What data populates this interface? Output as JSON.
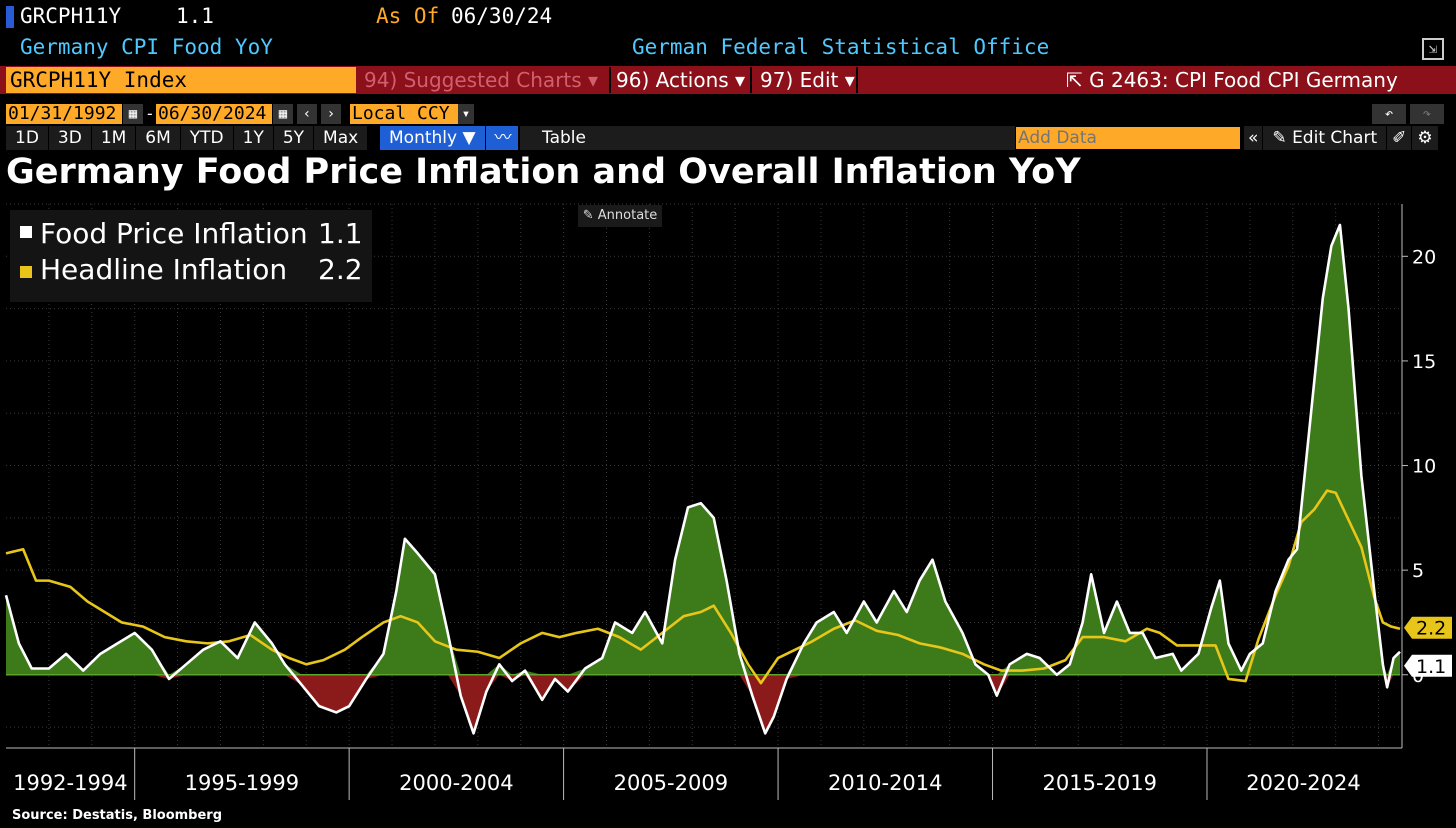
{
  "header": {
    "ticker": "GRCPH11Y",
    "last_value": "1.1",
    "as_of_label": "As Of",
    "as_of_date": "06/30/24",
    "security_name": "Germany CPI Food YoY",
    "source_org": "German Federal Statistical Office",
    "index_field": "GRCPH11Y Index",
    "menu_suggested": "94) Suggested Charts",
    "menu_actions": "96) Actions",
    "menu_edit": "97) Edit",
    "chart_id": "G 2463: CPI Food CPI Germany"
  },
  "toolbar": {
    "start_date": "01/31/1992",
    "end_date": "06/30/2024",
    "currency": "Local CCY",
    "periods": [
      "1D",
      "3D",
      "1M",
      "6M",
      "YTD",
      "1Y",
      "5Y",
      "Max"
    ],
    "frequency": "Monthly ▼",
    "table_label": "Table",
    "add_data_placeholder": "Add Data",
    "edit_chart_label": "Edit Chart",
    "annotate_label": "Annotate"
  },
  "colors": {
    "food_line": "#ffffff",
    "headline_line": "#e8c619",
    "positive_fill": "#3c7a1a",
    "negative_fill": "#8b1a1a",
    "accent_orange": "#ffa928",
    "header_red": "#8b1019"
  },
  "source": "Source: Destatis, Bloomberg",
  "chart_data": {
    "type": "line",
    "title": "Germany Food Price Inflation and Overall Inflation YoY",
    "x_unit": "year",
    "x_range": [
      1992.0,
      2024.5
    ],
    "ylim": [
      -3.5,
      22.5
    ],
    "y_ticks": [
      0,
      5,
      10,
      15,
      20
    ],
    "x_period_labels": [
      "1992-1994",
      "1995-1999",
      "2000-2004",
      "2005-2009",
      "2010-2014",
      "2015-2019",
      "2020-2024"
    ],
    "grid": true,
    "legend_position": "top-left",
    "area_fill_series": "Food Price Inflation",
    "series": [
      {
        "name": "Food Price Inflation",
        "last": "1.1",
        "color": "#ffffff",
        "points": [
          [
            1992.0,
            3.8
          ],
          [
            1992.3,
            1.5
          ],
          [
            1992.6,
            0.3
          ],
          [
            1993.0,
            0.3
          ],
          [
            1993.4,
            1.0
          ],
          [
            1993.8,
            0.2
          ],
          [
            1994.2,
            1.0
          ],
          [
            1994.6,
            1.5
          ],
          [
            1995.0,
            2.0
          ],
          [
            1995.4,
            1.2
          ],
          [
            1995.8,
            -0.2
          ],
          [
            1996.2,
            0.5
          ],
          [
            1996.6,
            1.2
          ],
          [
            1997.0,
            1.6
          ],
          [
            1997.4,
            0.8
          ],
          [
            1997.8,
            2.5
          ],
          [
            1998.2,
            1.5
          ],
          [
            1998.5,
            0.5
          ],
          [
            1998.9,
            -0.5
          ],
          [
            1999.3,
            -1.5
          ],
          [
            1999.7,
            -1.8
          ],
          [
            2000.0,
            -1.5
          ],
          [
            2000.4,
            -0.2
          ],
          [
            2000.8,
            1.0
          ],
          [
            2001.1,
            4.0
          ],
          [
            2001.3,
            6.5
          ],
          [
            2001.6,
            5.8
          ],
          [
            2002.0,
            4.8
          ],
          [
            2002.3,
            2.0
          ],
          [
            2002.6,
            -1.0
          ],
          [
            2002.9,
            -2.8
          ],
          [
            2003.2,
            -0.8
          ],
          [
            2003.5,
            0.5
          ],
          [
            2003.8,
            -0.3
          ],
          [
            2004.1,
            0.2
          ],
          [
            2004.5,
            -1.2
          ],
          [
            2004.8,
            -0.2
          ],
          [
            2005.1,
            -0.8
          ],
          [
            2005.5,
            0.3
          ],
          [
            2005.9,
            0.8
          ],
          [
            2006.2,
            2.5
          ],
          [
            2006.6,
            2.0
          ],
          [
            2006.9,
            3.0
          ],
          [
            2007.3,
            1.5
          ],
          [
            2007.6,
            5.5
          ],
          [
            2007.9,
            8.0
          ],
          [
            2008.2,
            8.2
          ],
          [
            2008.5,
            7.5
          ],
          [
            2008.8,
            4.5
          ],
          [
            2009.1,
            1.0
          ],
          [
            2009.4,
            -1.0
          ],
          [
            2009.7,
            -2.8
          ],
          [
            2009.9,
            -2.0
          ],
          [
            2010.2,
            -0.2
          ],
          [
            2010.6,
            1.5
          ],
          [
            2010.9,
            2.5
          ],
          [
            2011.3,
            3.0
          ],
          [
            2011.6,
            2.0
          ],
          [
            2012.0,
            3.5
          ],
          [
            2012.3,
            2.5
          ],
          [
            2012.7,
            4.0
          ],
          [
            2013.0,
            3.0
          ],
          [
            2013.3,
            4.5
          ],
          [
            2013.6,
            5.5
          ],
          [
            2013.9,
            3.5
          ],
          [
            2014.3,
            2.0
          ],
          [
            2014.6,
            0.5
          ],
          [
            2014.9,
            0.0
          ],
          [
            2015.1,
            -1.0
          ],
          [
            2015.4,
            0.5
          ],
          [
            2015.8,
            1.0
          ],
          [
            2016.1,
            0.8
          ],
          [
            2016.5,
            0.0
          ],
          [
            2016.8,
            0.5
          ],
          [
            2017.1,
            2.5
          ],
          [
            2017.3,
            4.8
          ],
          [
            2017.6,
            2.0
          ],
          [
            2017.9,
            3.5
          ],
          [
            2018.2,
            2.0
          ],
          [
            2018.5,
            2.0
          ],
          [
            2018.8,
            0.8
          ],
          [
            2019.2,
            1.0
          ],
          [
            2019.4,
            0.2
          ],
          [
            2019.8,
            1.0
          ],
          [
            2020.1,
            3.2
          ],
          [
            2020.3,
            4.5
          ],
          [
            2020.5,
            1.5
          ],
          [
            2020.8,
            0.2
          ],
          [
            2021.0,
            1.0
          ],
          [
            2021.3,
            1.5
          ],
          [
            2021.6,
            4.0
          ],
          [
            2021.9,
            5.5
          ],
          [
            2022.1,
            6.0
          ],
          [
            2022.4,
            12.0
          ],
          [
            2022.7,
            18.0
          ],
          [
            2022.9,
            20.5
          ],
          [
            2023.1,
            21.5
          ],
          [
            2023.3,
            17.5
          ],
          [
            2023.6,
            9.5
          ],
          [
            2023.9,
            4.0
          ],
          [
            2024.1,
            0.5
          ],
          [
            2024.2,
            -0.6
          ],
          [
            2024.35,
            0.8
          ],
          [
            2024.5,
            1.1
          ]
        ]
      },
      {
        "name": "Headline Inflation",
        "last": "2.2",
        "color": "#e8c619",
        "points": [
          [
            1992.0,
            5.8
          ],
          [
            1992.4,
            6.0
          ],
          [
            1992.7,
            4.5
          ],
          [
            1993.0,
            4.5
          ],
          [
            1993.5,
            4.2
          ],
          [
            1993.9,
            3.5
          ],
          [
            1994.3,
            3.0
          ],
          [
            1994.7,
            2.5
          ],
          [
            1995.2,
            2.3
          ],
          [
            1995.7,
            1.8
          ],
          [
            1996.2,
            1.6
          ],
          [
            1996.7,
            1.5
          ],
          [
            1997.2,
            1.6
          ],
          [
            1997.7,
            1.9
          ],
          [
            1998.2,
            1.2
          ],
          [
            1998.6,
            0.8
          ],
          [
            1999.0,
            0.5
          ],
          [
            1999.4,
            0.7
          ],
          [
            1999.9,
            1.2
          ],
          [
            2000.3,
            1.8
          ],
          [
            2000.8,
            2.5
          ],
          [
            2001.2,
            2.8
          ],
          [
            2001.6,
            2.5
          ],
          [
            2002.0,
            1.6
          ],
          [
            2002.5,
            1.2
          ],
          [
            2003.0,
            1.1
          ],
          [
            2003.5,
            0.8
          ],
          [
            2004.0,
            1.5
          ],
          [
            2004.5,
            2.0
          ],
          [
            2004.9,
            1.8
          ],
          [
            2005.3,
            2.0
          ],
          [
            2005.8,
            2.2
          ],
          [
            2006.3,
            1.8
          ],
          [
            2006.8,
            1.2
          ],
          [
            2007.3,
            2.0
          ],
          [
            2007.8,
            2.8
          ],
          [
            2008.2,
            3.0
          ],
          [
            2008.5,
            3.3
          ],
          [
            2008.9,
            2.0
          ],
          [
            2009.3,
            0.5
          ],
          [
            2009.6,
            -0.4
          ],
          [
            2010.0,
            0.8
          ],
          [
            2010.4,
            1.2
          ],
          [
            2010.8,
            1.6
          ],
          [
            2011.3,
            2.2
          ],
          [
            2011.8,
            2.6
          ],
          [
            2012.3,
            2.1
          ],
          [
            2012.8,
            1.9
          ],
          [
            2013.3,
            1.5
          ],
          [
            2013.8,
            1.3
          ],
          [
            2014.3,
            1.0
          ],
          [
            2014.8,
            0.5
          ],
          [
            2015.2,
            0.2
          ],
          [
            2015.7,
            0.2
          ],
          [
            2016.2,
            0.3
          ],
          [
            2016.7,
            0.7
          ],
          [
            2017.1,
            1.8
          ],
          [
            2017.6,
            1.8
          ],
          [
            2018.1,
            1.6
          ],
          [
            2018.6,
            2.2
          ],
          [
            2018.9,
            2.0
          ],
          [
            2019.3,
            1.4
          ],
          [
            2019.8,
            1.4
          ],
          [
            2020.2,
            1.4
          ],
          [
            2020.5,
            -0.2
          ],
          [
            2020.9,
            -0.3
          ],
          [
            2021.2,
            1.7
          ],
          [
            2021.6,
            3.8
          ],
          [
            2021.9,
            5.2
          ],
          [
            2022.2,
            7.3
          ],
          [
            2022.5,
            7.9
          ],
          [
            2022.8,
            8.8
          ],
          [
            2023.0,
            8.7
          ],
          [
            2023.3,
            7.4
          ],
          [
            2023.6,
            6.1
          ],
          [
            2023.9,
            3.7
          ],
          [
            2024.1,
            2.5
          ],
          [
            2024.3,
            2.3
          ],
          [
            2024.5,
            2.2
          ]
        ]
      }
    ]
  }
}
